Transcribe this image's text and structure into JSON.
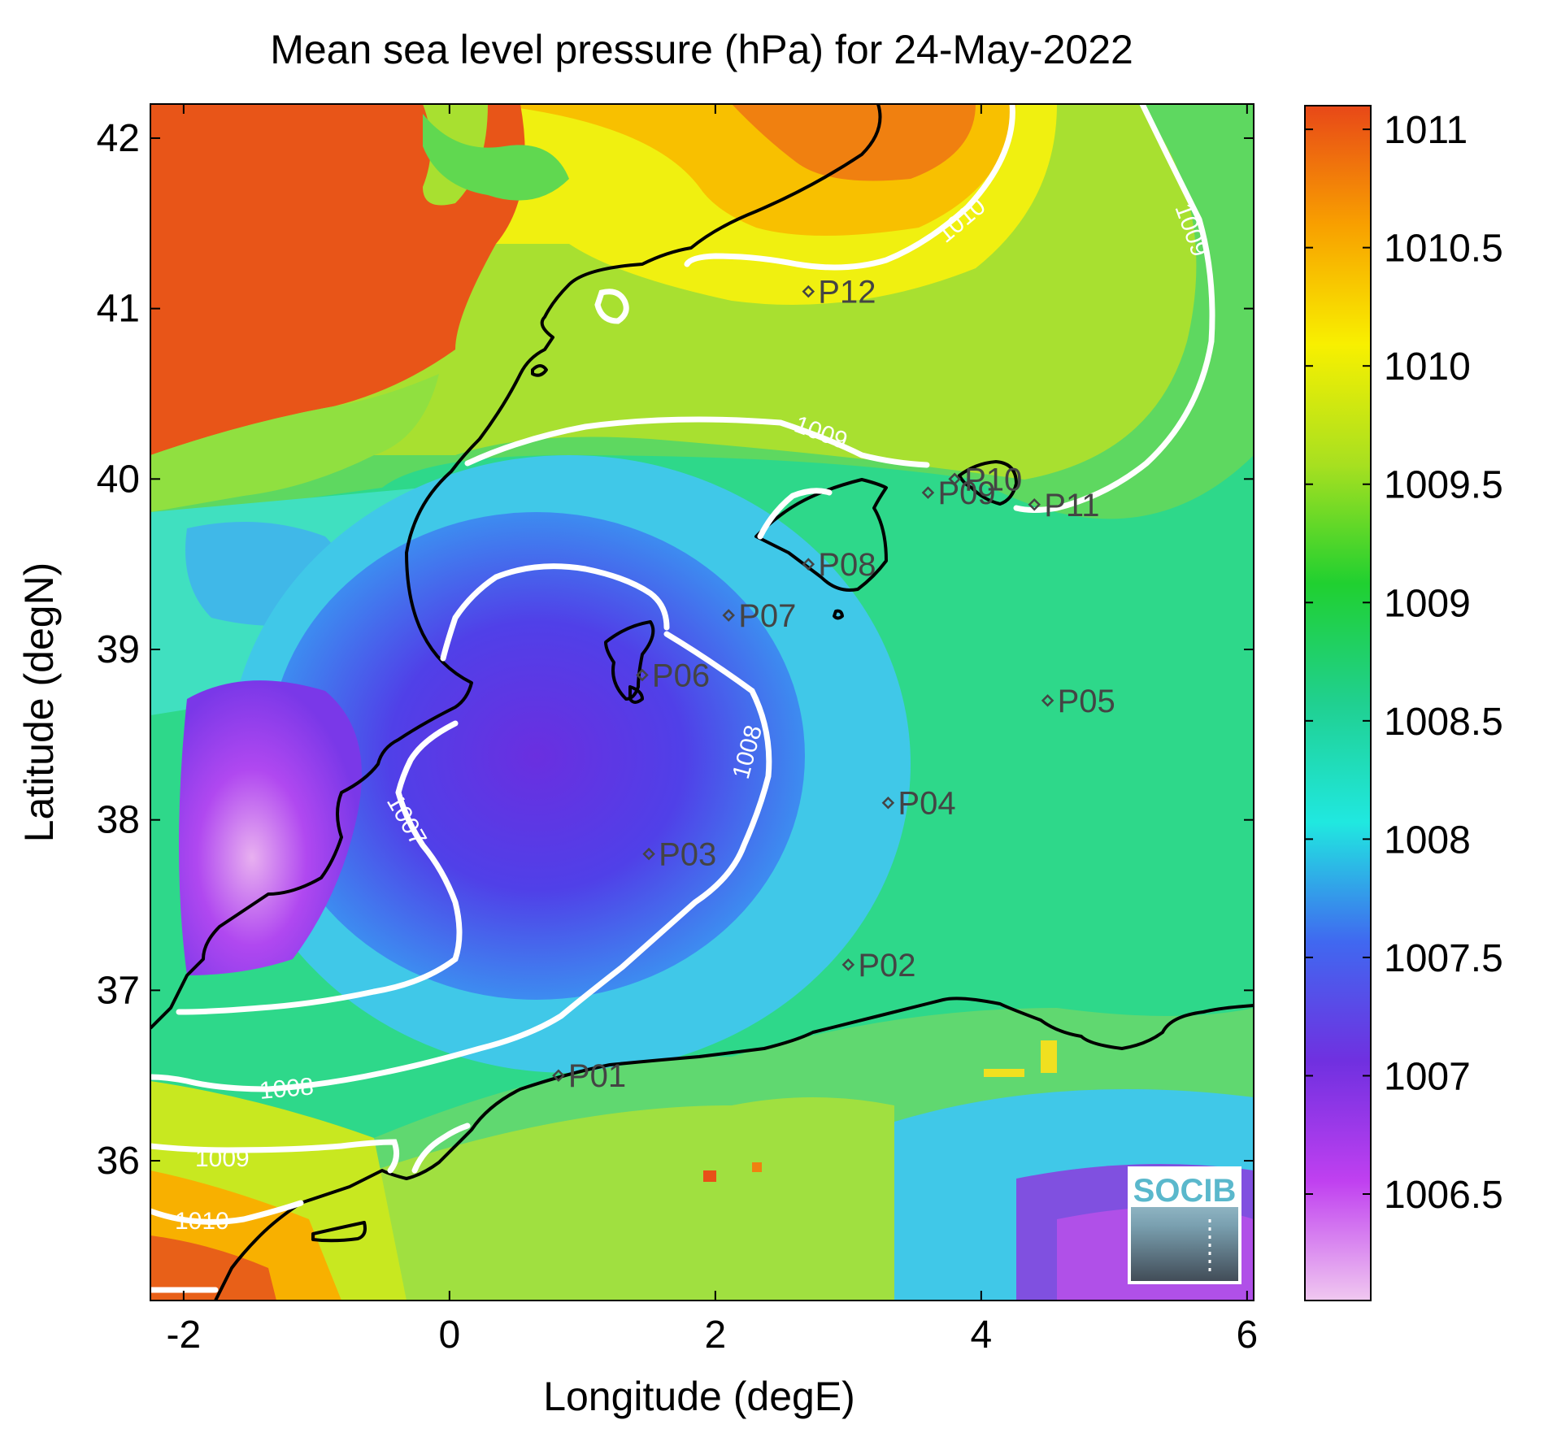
{
  "title": "Mean sea level pressure (hPa) for 24-May-2022",
  "xlabel": "Longitude (degE)",
  "ylabel": "Latitude (degN)",
  "x_ticks": [
    "-2",
    "0",
    "2",
    "4",
    "6"
  ],
  "y_ticks": [
    "36",
    "37",
    "38",
    "39",
    "40",
    "41",
    "42"
  ],
  "colorbar": {
    "range": [
      1006.05,
      1011.1
    ],
    "tick_labels": [
      "1011",
      "1010.5",
      "1010",
      "1009.5",
      "1009",
      "1008.5",
      "1008",
      "1007.5",
      "1007",
      "1006.5"
    ],
    "gradient": [
      "#f0c8f0",
      "#c040f0",
      "#7030e0",
      "#4068f0",
      "#20e8e0",
      "#20d090",
      "#20d030",
      "#a8e020",
      "#f8f000",
      "#f8a000",
      "#e84818"
    ]
  },
  "stations": [
    {
      "label": "P01",
      "lon": 0.82,
      "lat": 36.5
    },
    {
      "label": "P02",
      "lon": 3.0,
      "lat": 37.15
    },
    {
      "label": "P03",
      "lon": 1.5,
      "lat": 37.8
    },
    {
      "label": "P04",
      "lon": 3.3,
      "lat": 38.1
    },
    {
      "label": "P05",
      "lon": 4.5,
      "lat": 38.7
    },
    {
      "label": "P06",
      "lon": 1.45,
      "lat": 38.85
    },
    {
      "label": "P07",
      "lon": 2.1,
      "lat": 39.2
    },
    {
      "label": "P08",
      "lon": 2.7,
      "lat": 39.5
    },
    {
      "label": "P09",
      "lon": 3.6,
      "lat": 39.92
    },
    {
      "label": "P10",
      "lon": 3.8,
      "lat": 40.0
    },
    {
      "label": "P11",
      "lon": 4.4,
      "lat": 39.85
    },
    {
      "label": "P12",
      "lon": 2.7,
      "lat": 41.1
    }
  ],
  "contour_labels": {
    "c1010_north": "1010",
    "c1009_east": "1009",
    "c1009_mid": "1009",
    "c1008_east": "1008",
    "c1007": "1007",
    "c1008_south": "1008",
    "c1009_south": "1009",
    "c1010_south": "1010"
  },
  "logo": "SOCIB"
}
